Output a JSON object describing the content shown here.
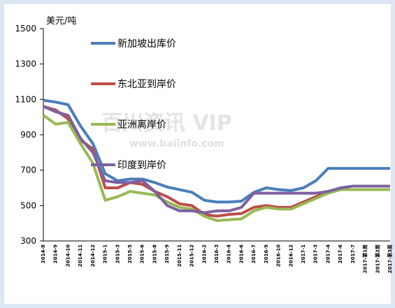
{
  "chart_data": {
    "type": "line",
    "y_label": "美元/吨",
    "watermark": "百川资讯 VIP",
    "watermark_url": "www.baiinfo.com",
    "categories": [
      "2014-8",
      "2014-9",
      "2014-10",
      "2014-11",
      "2014-12",
      "2015-1",
      "2015-3",
      "2015-5",
      "2015-6",
      "2015-8",
      "2015-9",
      "2015-11",
      "2015-12",
      "2016-2",
      "2016-3",
      "2016-4",
      "2016-6",
      "2016-7",
      "2016-9",
      "2016-10",
      "2016-12",
      "2017-1",
      "2017-3",
      "2017-4",
      "2017-6",
      "2017-7",
      "2017-第1周",
      "2017-第2周",
      "2017-第3周"
    ],
    "series": [
      {
        "name": "新加坡出库价",
        "color": "#4a7ebb",
        "values": [
          1095,
          1085,
          1070,
          950,
          850,
          680,
          640,
          650,
          650,
          630,
          605,
          590,
          575,
          530,
          520,
          520,
          525,
          575,
          600,
          590,
          585,
          600,
          640,
          710,
          710,
          710,
          710,
          710,
          710
        ]
      },
      {
        "name": "东北亚到岸价",
        "color": "#be4b48",
        "values": [
          1060,
          1040,
          990,
          870,
          820,
          600,
          600,
          630,
          620,
          580,
          550,
          510,
          500,
          450,
          440,
          450,
          455,
          490,
          500,
          490,
          490,
          520,
          550,
          580,
          590,
          590,
          590,
          590,
          590
        ]
      },
      {
        "name": "亚洲离岸价",
        "color": "#98b954",
        "values": [
          1010,
          960,
          970,
          850,
          740,
          530,
          550,
          580,
          570,
          560,
          520,
          490,
          480,
          440,
          415,
          420,
          425,
          470,
          490,
          480,
          480,
          510,
          540,
          570,
          590,
          590,
          590,
          590,
          590
        ]
      },
      {
        "name": "印度到岸价",
        "color": "#7d60a0",
        "values": [
          1060,
          1030,
          1010,
          880,
          800,
          640,
          630,
          630,
          640,
          580,
          500,
          470,
          470,
          460,
          470,
          470,
          490,
          570,
          570,
          570,
          570,
          570,
          570,
          580,
          600,
          610,
          610,
          610,
          610
        ]
      }
    ],
    "ylim": [
      300,
      1500
    ],
    "yticks": [
      300,
      500,
      700,
      900,
      1100,
      1300,
      1500
    ]
  }
}
